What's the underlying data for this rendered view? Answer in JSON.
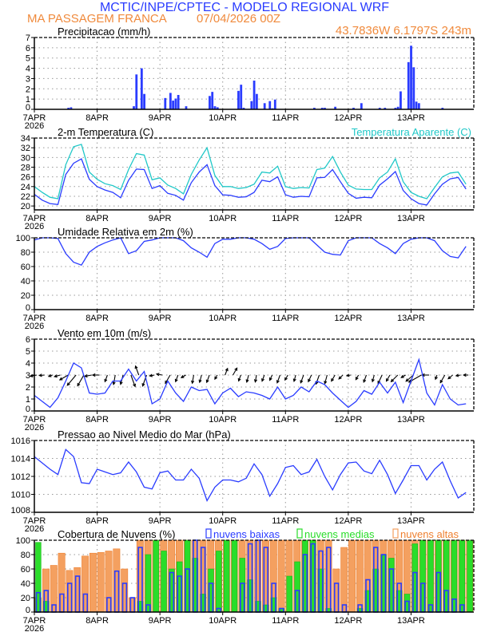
{
  "header": {
    "title": "MCTIC/INPE/CPTEC - MODELO REGIONAL WRF",
    "station": "MA PASSAGEM FRANCA",
    "run": "07/04/2026 00Z",
    "location": "43.7836W 6.1797S 243m"
  },
  "x_axis": {
    "labels": [
      "7APR",
      "8APR",
      "9APR",
      "10APR",
      "11APR",
      "12APR",
      "13APR"
    ],
    "year": "2026"
  },
  "colors": {
    "title": "#2a3cff",
    "subtitle": "#f08a3c",
    "blue": "#2a3cff",
    "cyan": "#20c8c8",
    "green": "#2add2a",
    "orange": "#f4a060",
    "orange_edge": "#ee8030"
  },
  "times": [
    "07APR 00Z",
    "07APR 03Z",
    "07APR 06Z",
    "07APR 09Z",
    "07APR 12Z",
    "07APR 15Z",
    "07APR 18Z",
    "07APR 21Z",
    "08APR 00Z",
    "08APR 03Z",
    "08APR 06Z",
    "08APR 09Z",
    "08APR 12Z",
    "08APR 15Z",
    "08APR 18Z",
    "08APR 21Z",
    "09APR 00Z",
    "09APR 03Z",
    "09APR 06Z",
    "09APR 09Z",
    "09APR 12Z",
    "09APR 15Z",
    "09APR 18Z",
    "09APR 21Z",
    "10APR 00Z",
    "10APR 03Z",
    "10APR 06Z",
    "10APR 09Z",
    "10APR 12Z",
    "10APR 15Z",
    "10APR 18Z",
    "10APR 21Z",
    "11APR 00Z",
    "11APR 03Z",
    "11APR 06Z",
    "11APR 09Z",
    "11APR 12Z",
    "11APR 15Z",
    "11APR 18Z",
    "11APR 21Z",
    "12APR 00Z",
    "12APR 03Z",
    "12APR 06Z",
    "12APR 09Z",
    "12APR 12Z",
    "12APR 15Z",
    "12APR 18Z",
    "12APR 21Z",
    "13APR 00Z",
    "13APR 03Z",
    "13APR 06Z",
    "13APR 09Z",
    "13APR 12Z",
    "13APR 15Z",
    "13APR 18Z",
    "13APR 21Z"
  ],
  "chart_data": [
    {
      "type": "bar",
      "title": "Precipitacao (mm/h)",
      "ylim": [
        0,
        7
      ],
      "yticks": [
        "0",
        "1",
        "2",
        "3",
        "4",
        "5",
        "6",
        "7"
      ],
      "grid": true,
      "series": [
        {
          "color": "#2a3cff",
          "points": [
            [
              "07APR 13Z",
              0.15
            ],
            [
              "07APR 14Z",
              0.2
            ],
            [
              "08APR 14Z",
              0.3
            ],
            [
              "08APR 15Z",
              3.4
            ],
            [
              "08APR 17Z",
              4.0
            ],
            [
              "08APR 18Z",
              1.5
            ],
            [
              "09APR 02Z",
              1.1
            ],
            [
              "09APR 04Z",
              1.6
            ],
            [
              "09APR 05Z",
              0.85
            ],
            [
              "09APR 06Z",
              1.05
            ],
            [
              "09APR 07Z",
              1.4
            ],
            [
              "09APR 10Z",
              0.3
            ],
            [
              "09APR 19Z",
              1.3
            ],
            [
              "09APR 20Z",
              1.7
            ],
            [
              "09APR 21Z",
              0.3
            ],
            [
              "09APR 22Z",
              0.2
            ],
            [
              "10APR 06Z",
              1.8
            ],
            [
              "10APR 07Z",
              2.4
            ],
            [
              "10APR 08Z",
              0.15
            ],
            [
              "10APR 11Z",
              0.8
            ],
            [
              "10APR 12Z",
              2.8
            ],
            [
              "10APR 13Z",
              1.5
            ],
            [
              "10APR 16Z",
              0.6
            ],
            [
              "10APR 18Z",
              0.8
            ],
            [
              "10APR 19Z",
              0.1
            ],
            [
              "10APR 20Z",
              0.95
            ],
            [
              "11APR 11Z",
              0.15
            ],
            [
              "11APR 14Z",
              0.15
            ],
            [
              "11APR 15Z",
              0.15
            ],
            [
              "11APR 19Z",
              0.25
            ],
            [
              "12APR 02Z",
              0.15
            ],
            [
              "12APR 05Z",
              0.6
            ],
            [
              "12APR 12Z",
              0.15
            ],
            [
              "12APR 14Z",
              0.15
            ],
            [
              "12APR 18Z",
              0.15
            ],
            [
              "12APR 19Z",
              0.25
            ],
            [
              "12APR 20Z",
              1.75
            ],
            [
              "12APR 23Z",
              4.6
            ],
            [
              "13APR 00Z",
              6.2
            ],
            [
              "13APR 01Z",
              4.1
            ],
            [
              "13APR 02Z",
              0.75
            ],
            [
              "13APR 03Z",
              0.6
            ],
            [
              "13APR 12Z",
              0.15
            ]
          ]
        }
      ]
    },
    {
      "type": "line",
      "title": "2-m Temperatura (C)",
      "ylim": [
        19.2,
        34
      ],
      "yticks": [
        "20",
        "22",
        "24",
        "26",
        "28",
        "30",
        "32",
        "34"
      ],
      "grid": true,
      "series": [
        {
          "color": "#2a3cff",
          "values": [
            22.4,
            21.2,
            20.5,
            20.3,
            26.5,
            28.8,
            29.7,
            25.5,
            24.0,
            23.3,
            22.8,
            21.7,
            25.3,
            27.6,
            27.5,
            23.6,
            24.2,
            22.6,
            22.2,
            21.2,
            24.8,
            27.0,
            28.5,
            24.2,
            22.3,
            22.2,
            21.8,
            21.9,
            22.8,
            25.3,
            25.0,
            26.0,
            22.3,
            21.8,
            22.0,
            21.9,
            25.8,
            25.9,
            27.5,
            25.0,
            22.6,
            21.6,
            21.8,
            21.7,
            24.3,
            25.6,
            27.1,
            23.2,
            21.5,
            20.5,
            20.2,
            22.5,
            24.5,
            25.6,
            25.9,
            23.5
          ]
        },
        {
          "name": "Temperatura Aparente (C)",
          "color": "#20c8c8",
          "values": [
            24.0,
            22.8,
            21.8,
            21.5,
            28.5,
            32.2,
            32.7,
            27.0,
            25.5,
            24.6,
            24.2,
            23.4,
            27.5,
            30.8,
            30.5,
            25.4,
            25.8,
            24.3,
            23.6,
            22.5,
            26.5,
            29.5,
            32.0,
            26.3,
            24.0,
            24.0,
            23.6,
            23.8,
            24.5,
            27.0,
            26.8,
            28.2,
            24.0,
            23.6,
            23.8,
            23.7,
            27.5,
            27.8,
            30.2,
            27.0,
            24.3,
            23.5,
            23.4,
            23.4,
            25.8,
            27.0,
            29.7,
            25.0,
            22.8,
            22.0,
            21.5,
            23.8,
            26.0,
            26.8,
            27.0,
            24.5
          ]
        }
      ]
    },
    {
      "type": "line",
      "title": "Umidade Relativa em 2m (%)",
      "ylim": [
        0,
        100
      ],
      "yticks": [
        "0",
        "20",
        "40",
        "60",
        "80",
        "100"
      ],
      "grid": true,
      "series": [
        {
          "color": "#2a3cff",
          "values": [
            97,
            100,
            100,
            99,
            78,
            66,
            62,
            80,
            88,
            93,
            97,
            100,
            78,
            82,
            95,
            97,
            100,
            100,
            100,
            96,
            86,
            80,
            73,
            92,
            98,
            98,
            100,
            100,
            98,
            92,
            84,
            88,
            99,
            100,
            100,
            100,
            90,
            80,
            77,
            76,
            96,
            100,
            100,
            100,
            92,
            86,
            78,
            92,
            98,
            100,
            100,
            96,
            82,
            74,
            72,
            88
          ]
        }
      ]
    },
    {
      "type": "line",
      "title": "Vento em 10m (m/s)",
      "ylim": [
        0,
        6
      ],
      "yticks": [
        "0",
        "1",
        "2",
        "3",
        "4",
        "5",
        "6"
      ],
      "grid": true,
      "series": [
        {
          "color": "#2a3cff",
          "values": [
            1.3,
            0.8,
            0.3,
            1.1,
            2.5,
            4.0,
            3.6,
            1.5,
            1.4,
            1.5,
            2.5,
            2.5,
            3.5,
            2.5,
            3.3,
            0.6,
            1.0,
            2.5,
            1.5,
            0.8,
            2.0,
            1.7,
            1.8,
            0.6,
            1.5,
            1.9,
            1.2,
            1.6,
            1.5,
            1.3,
            1.0,
            2.0,
            1.0,
            1.3,
            2.0,
            1.6,
            2.5,
            2.2,
            1.5,
            0.9,
            0.3,
            0.8,
            1.7,
            1.4,
            2.4,
            1.5,
            2.4,
            0.7,
            2.5,
            4.3,
            1.5,
            0.5,
            2.2,
            1.0,
            0.5,
            0.6
          ]
        }
      ],
      "wind_direction_deg": [
        80,
        85,
        70,
        75,
        60,
        40,
        30,
        80,
        90,
        20,
        10,
        15,
        340,
        160,
        20,
        80,
        100,
        30,
        20,
        60,
        10,
        15,
        20,
        30,
        200,
        210,
        20,
        15,
        10,
        20,
        25,
        20,
        30,
        15,
        20,
        25,
        20,
        15,
        30,
        45,
        80,
        30,
        20,
        15,
        25,
        30,
        45,
        60,
        50,
        60,
        90,
        20,
        30,
        50,
        80,
        90
      ]
    },
    {
      "type": "line",
      "title": "Pressao ao Nivel Medio do Mar (hPa)",
      "ylim": [
        1008,
        1016
      ],
      "yticks": [
        "1008",
        "1010",
        "1012",
        "1014",
        "1016"
      ],
      "grid": true,
      "series": [
        {
          "color": "#2a3cff",
          "values": [
            1014.2,
            1013.5,
            1012.8,
            1012.2,
            1015.0,
            1014.2,
            1011.3,
            1011.2,
            1012.8,
            1012.5,
            1012.2,
            1012.4,
            1013.6,
            1012.5,
            1010.8,
            1010.6,
            1012.4,
            1012.6,
            1011.6,
            1011.6,
            1012.8,
            1011.8,
            1009.3,
            1010.8,
            1011.6,
            1011.6,
            1011.4,
            1011.8,
            1013.4,
            1012.2,
            1009.8,
            1011.2,
            1013.0,
            1013.2,
            1012.2,
            1012.5,
            1013.9,
            1012.0,
            1010.5,
            1012.2,
            1013.5,
            1013.6,
            1012.6,
            1012.3,
            1013.8,
            1012.2,
            1010.1,
            1011.6,
            1013.2,
            1013.2,
            1011.6,
            1012.8,
            1013.6,
            1011.5,
            1009.6,
            1010.2
          ]
        }
      ]
    },
    {
      "type": "bar",
      "title": "Cobertura de Nuvens (%)",
      "ylim": [
        0,
        100
      ],
      "yticks": [
        "0",
        "20",
        "40",
        "60",
        "80",
        "100"
      ],
      "grid": true,
      "legend": "top",
      "series": [
        {
          "name": "nuvens altas",
          "color": "#f4a060",
          "values": [
            20,
            60,
            65,
            82,
            58,
            62,
            78,
            82,
            83,
            85,
            88,
            60,
            20,
            100,
            100,
            100,
            100,
            100,
            100,
            100,
            100,
            100,
            100,
            100,
            100,
            100,
            100,
            100,
            100,
            100,
            100,
            100,
            100,
            100,
            100,
            100,
            100,
            100,
            60,
            90,
            100,
            100,
            100,
            100,
            100,
            100,
            100,
            100,
            100,
            100,
            100,
            100,
            100,
            100,
            100,
            100
          ]
        },
        {
          "name": "nuvens medias",
          "color": "#2add2a",
          "values": [
            97,
            15,
            0,
            0,
            0,
            0,
            0,
            0,
            0,
            0,
            0,
            0,
            0,
            15,
            80,
            100,
            85,
            60,
            70,
            100,
            75,
            25,
            60,
            85,
            100,
            100,
            75,
            45,
            15,
            10,
            20,
            5,
            50,
            70,
            100,
            100,
            60,
            5,
            0,
            0,
            0,
            5,
            30,
            60,
            80,
            75,
            30,
            25,
            95,
            100,
            100,
            100,
            100,
            100,
            100,
            100
          ]
        },
        {
          "name": "nuvens baixas",
          "color": "#2a3cff",
          "values": [
            27,
            30,
            10,
            25,
            40,
            50,
            25,
            0,
            0,
            20,
            57,
            40,
            20,
            90,
            10,
            0,
            0,
            55,
            50,
            60,
            100,
            90,
            40,
            5,
            0,
            0,
            40,
            95,
            100,
            90,
            40,
            5,
            0,
            30,
            80,
            95,
            85,
            90,
            40,
            10,
            0,
            10,
            45,
            90,
            80,
            60,
            40,
            15,
            55,
            40,
            10,
            55,
            30,
            18,
            10,
            0
          ]
        }
      ]
    }
  ]
}
